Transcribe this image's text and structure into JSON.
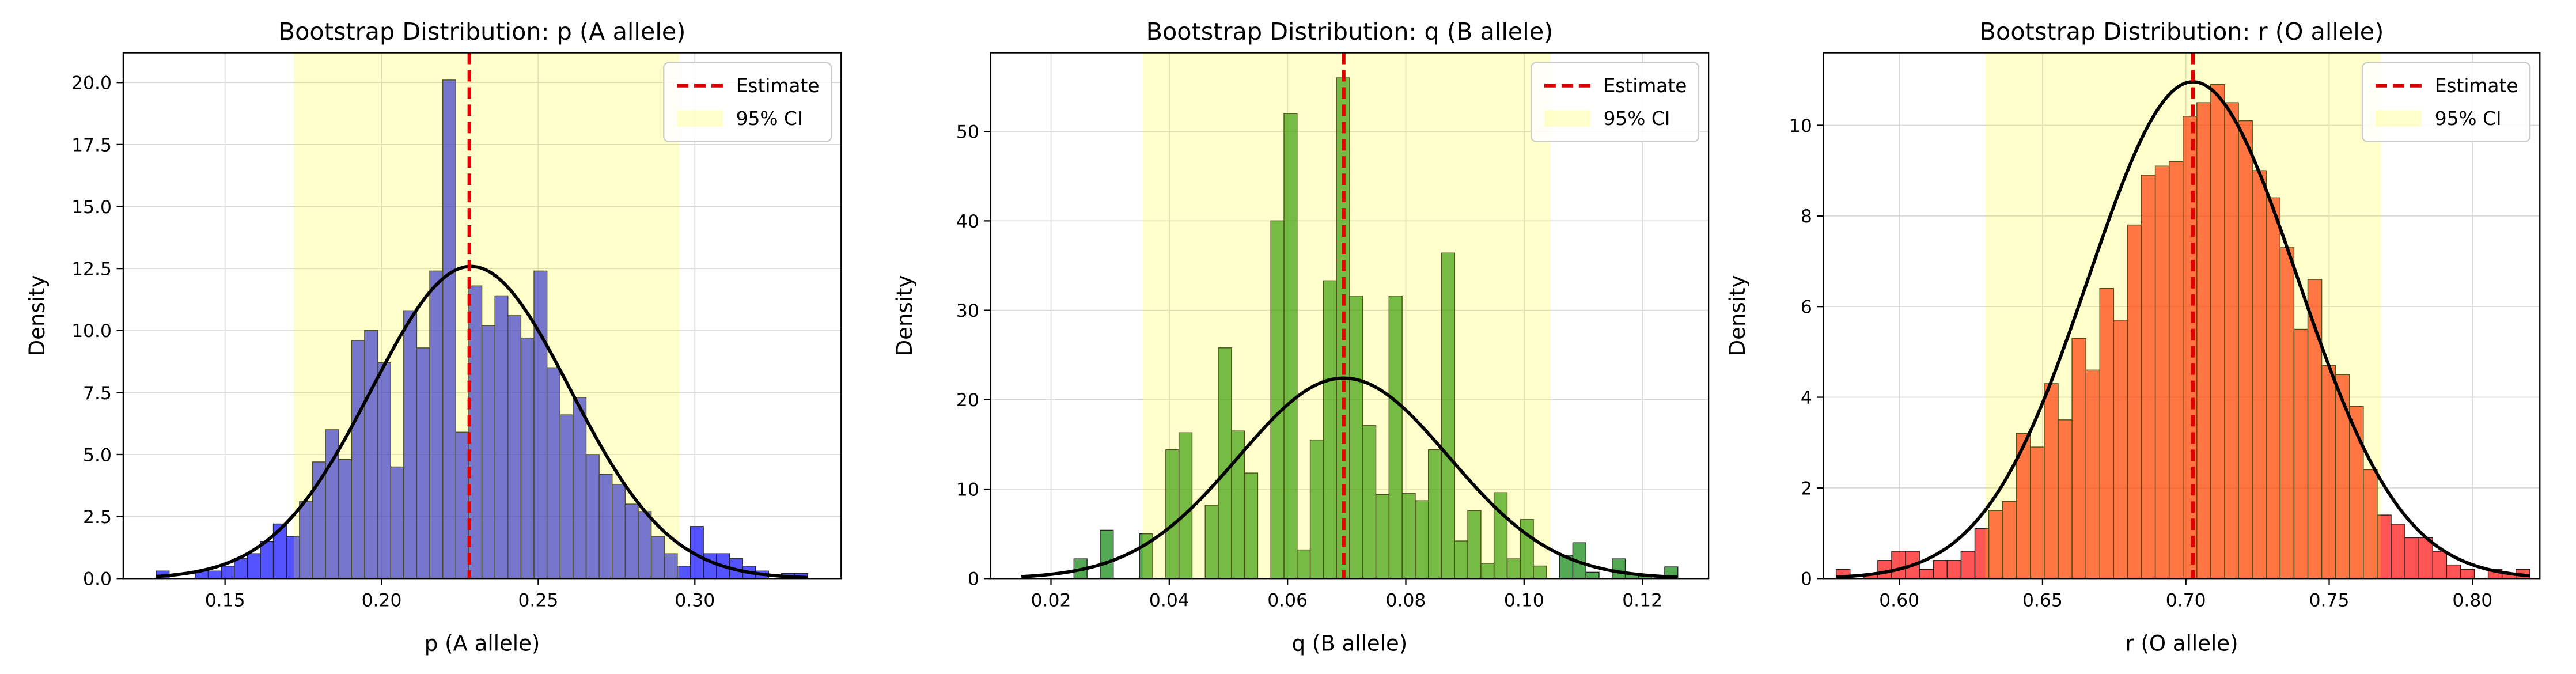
{
  "chart_data": [
    {
      "type": "histogram",
      "title": "Bootstrap Distribution: p (A allele)",
      "xlabel": "p (A allele)",
      "ylabel": "Density",
      "color": "#0000ff",
      "grid": true,
      "legend": "upper right",
      "xlim": [
        0.1175,
        0.3467
      ],
      "ylim": [
        0,
        21.2
      ],
      "xticks": [
        0.15,
        {
          "value": 0.2,
          "label": "0.20"
        },
        0.25,
        {
          "value": 0.3,
          "label": "0.30"
        }
      ],
      "yticks": [
        {
          "value": 0,
          "label": "0.0"
        },
        2.5,
        {
          "value": 5,
          "label": "5.0"
        },
        7.5,
        {
          "value": 10,
          "label": "10.0"
        },
        12.5,
        {
          "value": 15,
          "label": "15.0"
        },
        17.5,
        {
          "value": 20,
          "label": "20.0"
        }
      ],
      "bins": [
        0.128,
        0.13216,
        0.13632,
        0.14048,
        0.14464,
        0.1488,
        0.15296,
        0.15712,
        0.16128,
        0.16544,
        0.1696,
        0.17376,
        0.17792,
        0.18208,
        0.18624,
        0.1904,
        0.19456,
        0.19872,
        0.20288,
        0.20704,
        0.2112,
        0.21536,
        0.21952,
        0.22368,
        0.22784,
        0.232,
        0.23616,
        0.24032,
        0.24448,
        0.24864,
        0.2528,
        0.25696,
        0.26112,
        0.26528,
        0.26944,
        0.2736,
        0.27776,
        0.28192,
        0.28608,
        0.29024,
        0.2944,
        0.29856,
        0.30272,
        0.30688,
        0.31104,
        0.3152,
        0.31936,
        0.32352,
        0.32768,
        0.33184,
        0.336
      ],
      "values": [
        0.3,
        0,
        0,
        0.3,
        0.3,
        0.5,
        0.8,
        1.0,
        1.5,
        2.2,
        1.7,
        3.1,
        4.7,
        6.0,
        4.8,
        9.6,
        10.0,
        8.7,
        4.5,
        10.8,
        9.3,
        12.4,
        20.1,
        5.9,
        11.8,
        10.2,
        11.4,
        10.6,
        9.7,
        12.4,
        8.5,
        6.6,
        7.3,
        5.0,
        4.2,
        3.8,
        3.0,
        2.7,
        1.7,
        1.0,
        0.5,
        2.1,
        1.0,
        1.0,
        0.8,
        0.5,
        0.3,
        0,
        0.2,
        0.2
      ],
      "fit": {
        "mean": 0.2285,
        "sd": 0.0317,
        "color": "#000000"
      },
      "estimate": {
        "value": 0.228,
        "label": "Estimate",
        "color": "#e00000"
      },
      "ci": {
        "lower": 0.172,
        "upper": 0.295,
        "label": "95% CI",
        "color": "#ffff00"
      }
    },
    {
      "type": "histogram",
      "title": "Bootstrap Distribution: q (B allele)",
      "xlabel": "q (B allele)",
      "ylabel": "Density",
      "color": "#008000",
      "grid": true,
      "legend": "upper right",
      "xlim": [
        0.0098,
        0.1312
      ],
      "ylim": [
        0,
        58.8
      ],
      "xticks": [
        0.02,
        0.04,
        0.06,
        0.08,
        {
          "value": 0.1,
          "label": "0.10"
        },
        0.12
      ],
      "yticks": [
        0,
        10,
        20,
        30,
        40,
        50
      ],
      "bins": [
        0.015,
        0.01722,
        0.01944,
        0.02166,
        0.02388,
        0.0261,
        0.02832,
        0.03054,
        0.03276,
        0.03498,
        0.0372,
        0.03942,
        0.04164,
        0.04386,
        0.04608,
        0.0483,
        0.05052,
        0.05274,
        0.05496,
        0.05718,
        0.0594,
        0.06162,
        0.06384,
        0.06606,
        0.06828,
        0.0705,
        0.07272,
        0.07494,
        0.07716,
        0.07938,
        0.0816,
        0.08382,
        0.08604,
        0.08826,
        0.09048,
        0.0927,
        0.09492,
        0.09714,
        0.09936,
        0.10158,
        0.1038,
        0.10602,
        0.10824,
        0.11046,
        0.11268,
        0.1149,
        0.11712,
        0.11934,
        0.12156,
        0.12378,
        0.126
      ],
      "values": [
        0,
        0,
        0,
        0,
        2.2,
        0,
        5.4,
        0,
        0,
        5,
        0,
        14.4,
        16.3,
        0,
        8.2,
        25.8,
        16.5,
        11.8,
        0,
        40,
        52,
        3.2,
        15.5,
        33.3,
        56,
        31.6,
        17.1,
        9.4,
        31.6,
        9.5,
        8.7,
        14.4,
        36.4,
        4.2,
        7.6,
        1.7,
        9.6,
        2.2,
        6.6,
        1.4,
        0,
        2.6,
        4,
        0.7,
        0,
        2.2,
        0.5,
        0.3,
        0,
        1.3
      ],
      "fit": {
        "mean": 0.0695,
        "sd": 0.0178,
        "color": "#000000"
      },
      "estimate": {
        "value": 0.0695,
        "label": "Estimate",
        "color": "#e00000"
      },
      "ci": {
        "lower": 0.0355,
        "upper": 0.1045,
        "label": "95% CI",
        "color": "#ffff00"
      }
    },
    {
      "type": "histogram",
      "title": "Bootstrap Distribution: r (O allele)",
      "xlabel": "r (O allele)",
      "ylabel": "Density",
      "color": "#ff0000",
      "grid": true,
      "legend": "upper right",
      "xlim": [
        0.5736,
        0.8235
      ],
      "ylim": [
        0,
        11.6
      ],
      "xticks": [
        {
          "value": 0.6,
          "label": "0.60"
        },
        0.65,
        {
          "value": 0.7,
          "label": "0.70"
        },
        0.75,
        {
          "value": 0.8,
          "label": "0.80"
        }
      ],
      "yticks": [
        0,
        2,
        4,
        6,
        8,
        10
      ],
      "bins": [
        0.578,
        0.58284,
        0.58768,
        0.59252,
        0.59736,
        0.6022,
        0.60704,
        0.61188,
        0.61672,
        0.62156,
        0.6264,
        0.63124,
        0.63608,
        0.64092,
        0.64576,
        0.6506,
        0.65544,
        0.66028,
        0.66512,
        0.66996,
        0.6748,
        0.67964,
        0.68448,
        0.68932,
        0.69416,
        0.699,
        0.70384,
        0.70868,
        0.71352,
        0.71836,
        0.7232,
        0.72804,
        0.73288,
        0.73772,
        0.74256,
        0.7474,
        0.75224,
        0.75708,
        0.76192,
        0.76676,
        0.7716,
        0.77644,
        0.78128,
        0.78612,
        0.79096,
        0.7958,
        0.80064,
        0.80548,
        0.81032,
        0.81516,
        0.82
      ],
      "values": [
        0.2,
        0,
        0.1,
        0.4,
        0.6,
        0.6,
        0.2,
        0.4,
        0.4,
        0.6,
        1.1,
        1.5,
        1.7,
        3.2,
        2.9,
        4.3,
        3.5,
        5.3,
        4.6,
        6.4,
        5.7,
        7.8,
        8.9,
        9.1,
        9.2,
        10.2,
        10.5,
        10.9,
        10.5,
        10.1,
        9.0,
        8.4,
        7.3,
        5.5,
        6.6,
        4.7,
        4.5,
        3.8,
        2.4,
        1.4,
        1.2,
        0.9,
        0.9,
        0.6,
        0.3,
        0.2,
        0,
        0.2,
        0.1,
        0.2
      ],
      "fit": {
        "mean": 0.7025,
        "sd": 0.0364,
        "color": "#000000"
      },
      "estimate": {
        "value": 0.7025,
        "label": "Estimate",
        "color": "#e00000"
      },
      "ci": {
        "lower": 0.63,
        "upper": 0.768,
        "label": "95% CI",
        "color": "#ffff00"
      }
    }
  ]
}
